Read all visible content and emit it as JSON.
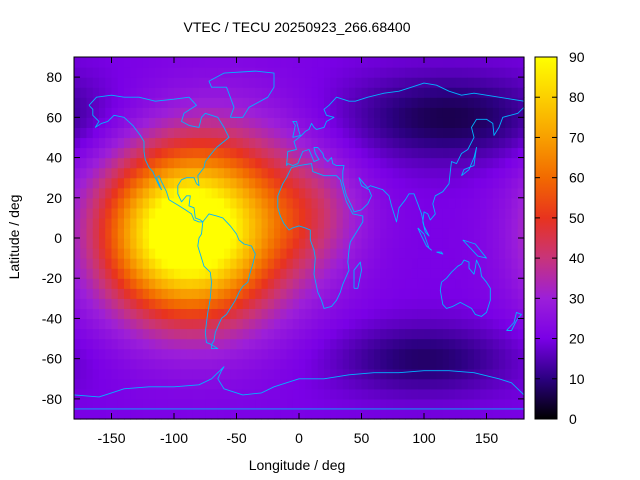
{
  "chart_data": {
    "type": "heatmap",
    "title": "VTEC / TECU 20250923_266.68400",
    "xlabel": "Longitude / deg",
    "ylabel": "Latitude / deg",
    "xlim": [
      -180,
      180
    ],
    "ylim": [
      -90,
      90
    ],
    "x_ticks": [
      -150,
      -100,
      -50,
      0,
      50,
      100,
      150
    ],
    "y_ticks": [
      -80,
      -60,
      -40,
      -20,
      0,
      20,
      40,
      60,
      80
    ],
    "colorbar": {
      "label": "",
      "range": [
        0,
        90
      ],
      "ticks": [
        0,
        10,
        20,
        30,
        40,
        50,
        60,
        70,
        80,
        90
      ],
      "colormap": [
        "#000000",
        "#2b0080",
        "#7a00e6",
        "#9c1fd9",
        "#c8347a",
        "#e8331e",
        "#f26a00",
        "#f8a000",
        "#fcd000",
        "#ffff00"
      ]
    },
    "grid": false,
    "background_level": 20,
    "enhancement_regions": [
      {
        "name": "",
        "lon": -95,
        "lat": 2,
        "peak": 88,
        "lon_width": 45,
        "lat_width": 28
      },
      {
        "name": "",
        "lon": -55,
        "lat": 10,
        "peak": 45,
        "lon_width": 50,
        "lat_width": 35
      },
      {
        "name": "",
        "lon": 10,
        "lat": 12,
        "peak": 32,
        "lon_width": 30,
        "lat_width": 20
      }
    ],
    "depletion_regions": [
      {
        "lon": 120,
        "lat": 60,
        "depth": 14,
        "lon_width": 60,
        "lat_width": 15
      },
      {
        "lon": 100,
        "lat": -60,
        "depth": 12,
        "lon_width": 50,
        "lat_width": 12
      }
    ],
    "overlay": "coastlines",
    "coastline_color": "#00b4ff"
  }
}
